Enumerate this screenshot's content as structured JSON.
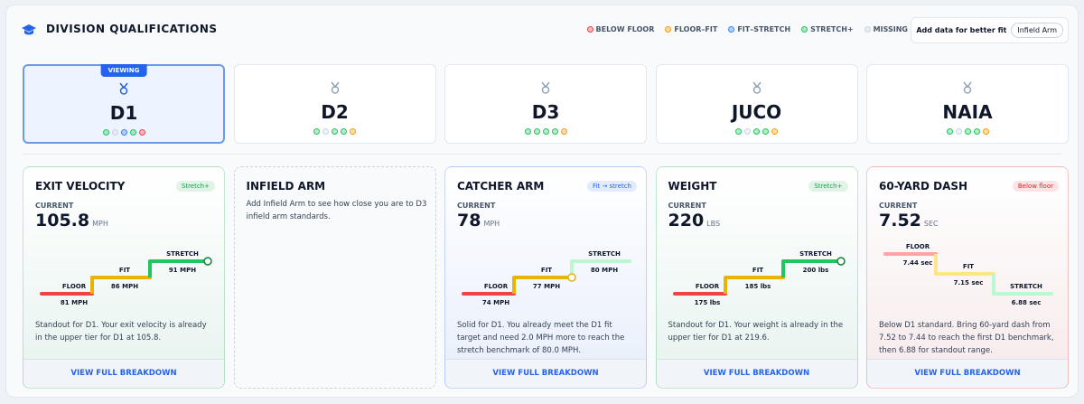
{
  "header": {
    "title": "DIVISION QUALIFICATIONS",
    "legend": [
      {
        "label": "BELOW FLOOR",
        "color": "#ef4444"
      },
      {
        "label": "FLOOR–FIT",
        "color": "#f59e0b"
      },
      {
        "label": "FIT–STRETCH",
        "color": "#3b82f6"
      },
      {
        "label": "STRETCH+",
        "color": "#22c55e"
      },
      {
        "label": "MISSING",
        "color": "#cbd5e1"
      }
    ],
    "hint": "Add data for better fit",
    "chip": "Infield Arm"
  },
  "divisions": [
    {
      "name": "D1",
      "badge": "VIEWING",
      "dots": [
        "#22c55e",
        "#cbd5e1",
        "#3b82f6",
        "#22c55e",
        "#ef4444"
      ]
    },
    {
      "name": "D2",
      "dots": [
        "#22c55e",
        "#cbd5e1",
        "#22c55e",
        "#22c55e",
        "#f59e0b"
      ]
    },
    {
      "name": "D3",
      "dots": [
        "#22c55e",
        "#22c55e",
        "#22c55e",
        "#22c55e",
        "#f59e0b"
      ]
    },
    {
      "name": "JUCO",
      "dots": [
        "#22c55e",
        "#cbd5e1",
        "#22c55e",
        "#22c55e",
        "#f59e0b"
      ]
    },
    {
      "name": "NAIA",
      "dots": [
        "#22c55e",
        "#cbd5e1",
        "#22c55e",
        "#22c55e",
        "#f59e0b"
      ]
    }
  ],
  "cards": [
    {
      "title": "EXIT VELOCITY",
      "status": "Stretch+",
      "color": "#16a34a",
      "current_label": "CURRENT",
      "value": "105.8",
      "unit": "MPH",
      "steps": [
        {
          "label": "FLOOR",
          "value": "81 MPH"
        },
        {
          "label": "FIT",
          "value": "86 MPH"
        },
        {
          "label": "STRETCH",
          "value": "91 MPH"
        }
      ],
      "note": "Standout for D1. Your exit velocity is already in the upper tier for D1 at 105.8.",
      "link": "VIEW FULL BREAKDOWN"
    },
    {
      "title": "INFIELD ARM",
      "message": "Add Infield Arm to see how close you are to D3 infield arm standards."
    },
    {
      "title": "CATCHER ARM",
      "status": "Fit → stretch",
      "color": "#2563eb",
      "current_label": "CURRENT",
      "value": "78",
      "unit": "MPH",
      "steps": [
        {
          "label": "FLOOR",
          "value": "74 MPH"
        },
        {
          "label": "FIT",
          "value": "77 MPH"
        },
        {
          "label": "STRETCH",
          "value": "80 MPH"
        }
      ],
      "note": "Solid for D1. You already meet the D1 fit target and need 2.0 MPH more to reach the stretch benchmark of 80.0 MPH.",
      "link": "VIEW FULL BREAKDOWN"
    },
    {
      "title": "WEIGHT",
      "status": "Stretch+",
      "color": "#16a34a",
      "current_label": "CURRENT",
      "value": "220",
      "unit": "LBS",
      "steps": [
        {
          "label": "FLOOR",
          "value": "175 lbs"
        },
        {
          "label": "FIT",
          "value": "185 lbs"
        },
        {
          "label": "STRETCH",
          "value": "200 lbs"
        }
      ],
      "note": "Standout for D1. Your weight is already in the upper tier for D1 at 219.6.",
      "link": "VIEW FULL BREAKDOWN"
    },
    {
      "title": "60-YARD DASH",
      "status": "Below floor",
      "color": "#dc2626",
      "current_label": "CURRENT",
      "value": "7.52",
      "unit": "SEC",
      "steps": [
        {
          "label": "FLOOR",
          "value": "7.44 sec"
        },
        {
          "label": "FIT",
          "value": "7.15 sec"
        },
        {
          "label": "STRETCH",
          "value": "6.88 sec"
        }
      ],
      "note": "Below D1 standard. Bring 60-yard dash from 7.52 to 7.44 to reach the first D1 benchmark, then 6.88 for standout range.",
      "link": "VIEW FULL BREAKDOWN"
    }
  ]
}
